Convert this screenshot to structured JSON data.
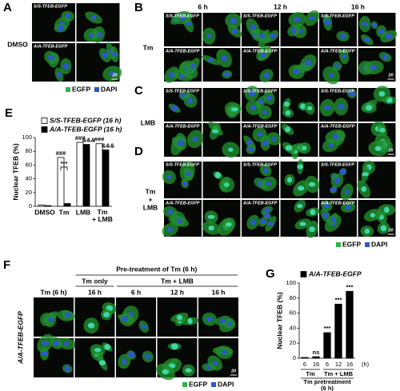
{
  "image_labels": [
    "S/S-TFEB-EGFP",
    "A/A-TFEB-EGFP"
  ],
  "scale_bar": "20",
  "channel_legend": [
    {
      "name": "EGFP",
      "color": "#2db34a"
    },
    {
      "name": "DAPI",
      "color": "#2e57c8"
    }
  ],
  "panels": [
    {
      "letter": "A",
      "row_label": [
        "DMSO"
      ]
    },
    {
      "letter": "B",
      "columns": [
        "6 h",
        "12 h",
        "16 h"
      ],
      "row_label": [
        "Tm"
      ]
    },
    {
      "letter": "C",
      "row_label": [
        "LMB"
      ]
    },
    {
      "letter": "D",
      "row_label": [
        "Tm",
        "+",
        "LMB"
      ]
    },
    {
      "letter": "E"
    },
    {
      "letter": "F",
      "header": "Pre-treatment of Tm (6 h)",
      "groups": [
        "Tm only",
        "Tm + LMB"
      ],
      "columns": [
        "Tm (6 h)",
        "16 h",
        "6 h",
        "12 h",
        "16 h"
      ],
      "row_label": [
        "A/A-TFEB-EGFP"
      ]
    },
    {
      "letter": "G"
    }
  ],
  "chart_data": [
    {
      "type": "bar",
      "y_label": "Nuclear TFEB (%)",
      "categories": [
        "DMSO",
        "Tm",
        "LMB",
        "Tm + LMB"
      ],
      "series": [
        {
          "name": "S/S-TFEB-EGFP (16 h)",
          "color": "#ffffff",
          "values": [
            2,
            71,
            93,
            91
          ],
          "annotations": [
            null,
            "###",
            "###",
            "###"
          ]
        },
        {
          "name": "A/A-TFEB-EGFP (16 h)",
          "color": "#000000",
          "values": [
            1,
            4,
            90,
            82
          ],
          "annotations": [
            null,
            null,
            "&&&",
            "&&&"
          ]
        }
      ],
      "significance": [
        null,
        "***",
        null,
        null
      ],
      "ylim": [
        0,
        100
      ],
      "yticks": [
        0,
        20,
        40,
        60,
        80,
        100
      ]
    },
    {
      "type": "bar",
      "y_label": "Nuclear TFEB (%)",
      "categories": [
        "6",
        "16",
        "6",
        "12",
        "16"
      ],
      "x_unit": "(h)",
      "groups": [
        "Tm",
        "Tm + LMB"
      ],
      "x_label": [
        "Tm pretreatment",
        "(6 h)"
      ],
      "series": [
        {
          "name": "A/A-TFEB-EGFP",
          "color": "#000000",
          "values": [
            1,
            2,
            34,
            72,
            89
          ],
          "annotations": [
            null,
            "ns",
            "***",
            "***",
            "***"
          ]
        }
      ],
      "ylim": [
        0,
        100
      ],
      "yticks": [
        0,
        20,
        40,
        60,
        80,
        100
      ]
    }
  ]
}
